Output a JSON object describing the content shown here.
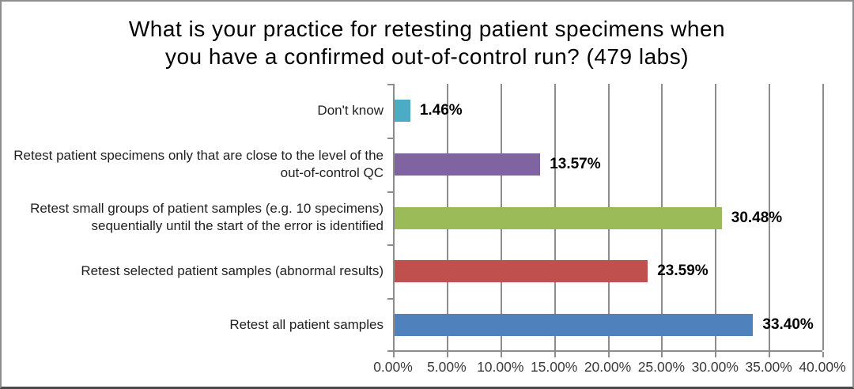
{
  "header": {
    "title_lines": [
      "What is your practice for retesting patient specimens when",
      "you have a confirmed out-of-control run? (479 labs)"
    ]
  },
  "chart_data": {
    "type": "bar",
    "orientation": "horizontal",
    "title": "What is your practice for retesting patient specimens when you have a confirmed out-of-control run? (479 labs)",
    "categories": [
      "Don't know",
      "Retest patient specimens only that are close to the level of the out-of-control QC",
      "Retest small groups of patient samples (e.g. 10 specimens) sequentially until the start of the error is identified",
      "Retest selected patient samples (abnormal results)",
      "Retest all patient samples"
    ],
    "values": [
      1.46,
      13.57,
      30.48,
      23.59,
      33.4
    ],
    "value_labels": [
      "1.46%",
      "13.57%",
      "30.48%",
      "23.59%",
      "33.40%"
    ],
    "bar_colors": [
      "#4BACC6",
      "#8064A2",
      "#9BBB59",
      "#C0504D",
      "#4F81BD"
    ],
    "xlabel": "",
    "ylabel": "",
    "xlim": [
      0,
      40
    ],
    "x_tick_labels": [
      "0.00%",
      "5.00%",
      "10.00%",
      "15.00%",
      "20.00%",
      "25.00%",
      "30.00%",
      "35.00%",
      "40.00%"
    ],
    "grid": "vertical",
    "legend_position": "none"
  },
  "colors": {
    "grid": "#8C8C8C",
    "axis": "#8C8C8C",
    "tick_text": "#3A3A3A",
    "category_text": "#1F1F1F",
    "data_label_text": "#000000",
    "frame_border": "#8E8E8E"
  }
}
